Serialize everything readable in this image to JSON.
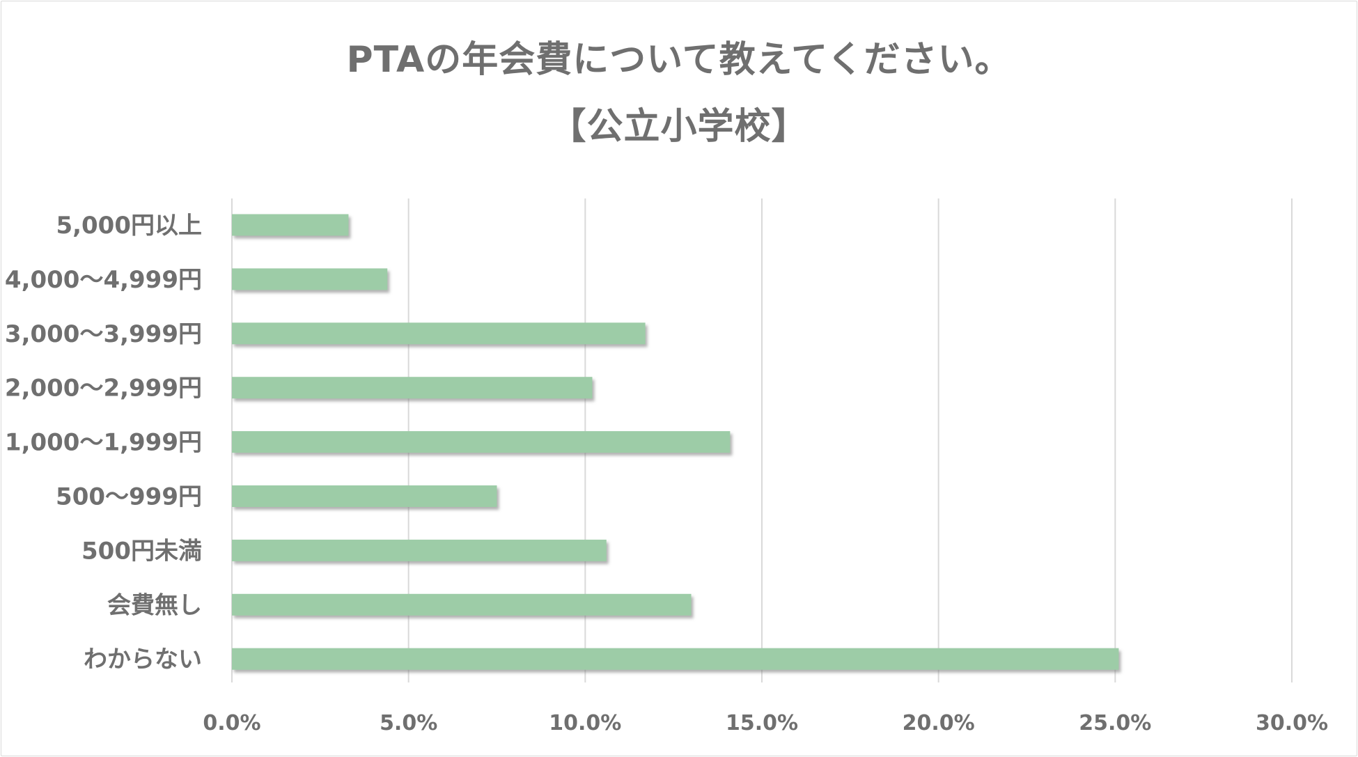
{
  "colors": {
    "bar": "#9dcca7",
    "bar_shadow": "#8f8f8f",
    "grid": "#d9d9d9",
    "text": "#6f6f6f"
  },
  "chart_data": {
    "type": "bar",
    "orientation": "horizontal",
    "title": "PTAの年会費について教えてください。",
    "subtitle": "【公立小学校】",
    "categories": [
      "5,000円以上",
      "4,000～4,999円",
      "3,000～3,999円",
      "2,000～2,999円",
      "1,000～1,999円",
      "500～999円",
      "500円未満",
      "会費無し",
      "わからない"
    ],
    "values": [
      3.3,
      4.4,
      11.7,
      10.2,
      14.1,
      7.5,
      10.6,
      13.0,
      25.1
    ],
    "xlim": [
      0,
      30
    ],
    "xticks": [
      0,
      5,
      10,
      15,
      20,
      25,
      30
    ],
    "xtick_labels": [
      "0.0%",
      "5.0%",
      "10.0%",
      "15.0%",
      "20.0%",
      "25.0%",
      "30.0%"
    ],
    "xlabel": "",
    "ylabel": "",
    "grid": "vertical",
    "legend": "none"
  }
}
